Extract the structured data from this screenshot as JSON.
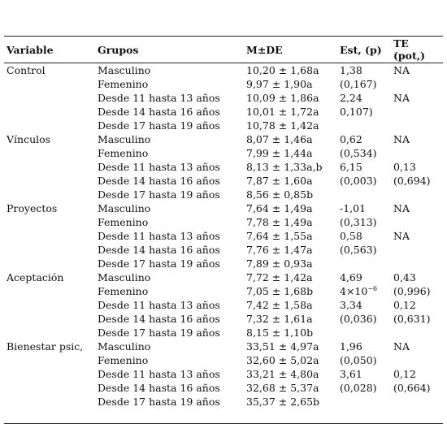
{
  "table": {
    "headers": [
      "Variable",
      "Grupos",
      "M±DE",
      "Est, (p)",
      "TE (pot,)"
    ],
    "groups": [
      {
        "variable": "Control",
        "rows": [
          {
            "group": "Masculino",
            "mean": "10,20 ± 1,68a",
            "est": "1,38",
            "te": "NA"
          },
          {
            "group": "Femenino",
            "mean": "9,97 ± 1,90a",
            "est": "(0,167)"
          },
          {
            "group": "Desde 11 hasta 13 años",
            "mean": "10,09 ± 1,86a",
            "est": "2,24",
            "te": "NA"
          },
          {
            "group": "Desde 14 hasta 16 años",
            "mean": "10,01 ± 1,72a",
            "est": "0,107)"
          },
          {
            "group": "Desde 17 hasta 19 años",
            "mean": "10,78 ± 1,42a"
          }
        ]
      },
      {
        "variable": "Vínculos",
        "rows": [
          {
            "group": "Masculino",
            "mean": "8,07 ± 1,46a",
            "est": "0,62",
            "te": "NA"
          },
          {
            "group": "Femenino",
            "mean": "7,99 ± 1,44a",
            "est": "(0,534)"
          },
          {
            "group": "Desde 11 hasta 13 años",
            "mean": "8,13 ± 1,33a,b",
            "est": "6,15",
            "te": "0,13"
          },
          {
            "group": "Desde 14 hasta 16 años",
            "mean": "7,87 ± 1,60a",
            "est": "(0,003)",
            "te": "(0,694)"
          },
          {
            "group": "Desde 17 hasta 19 años",
            "mean": "8,56 ± 0,85b"
          }
        ]
      },
      {
        "variable": "Proyectos",
        "rows": [
          {
            "group": "Masculino",
            "mean": "7,64 ± 1,49a",
            "est": "-1,01",
            "te": "NA"
          },
          {
            "group": "Femenino",
            "mean": "7,78 ± 1,49a",
            "est": "(0,313)"
          },
          {
            "group": "Desde 11 hasta 13 años",
            "mean": "7,64 ± 1,55a",
            "est": "0,58",
            "te": "NA"
          },
          {
            "group": "Desde 14 hasta 16 años",
            "mean": "7,76 ± 1,47a",
            "est": "(0,563)"
          },
          {
            "group": "Desde 17 hasta 19 años",
            "mean": "7,89 ± 0,93a"
          }
        ]
      },
      {
        "variable": "Aceptación",
        "rows": [
          {
            "group": "Masculino",
            "mean": "7,72 ± 1,42a",
            "est": "4,69",
            "te": "0,43"
          },
          {
            "group": "Femenino",
            "mean": "7,05 ± 1,68b",
            "est": {
              "base": "4×10",
              "exp": "−6"
            },
            "te": "(0,996)"
          },
          {
            "group": "Desde 11 hasta 13 años",
            "mean": "7,42 ± 1,58a",
            "est": "3,34",
            "te": "0,12"
          },
          {
            "group": "Desde 14 hasta 16 años",
            "mean": "7,32 ± 1,61a",
            "est": "(0,036)",
            "te": "(0,631)"
          },
          {
            "group": "Desde 17 hasta 19 años",
            "mean": "8,15 ± 1,10b"
          }
        ]
      },
      {
        "variable": "Bienestar psic,",
        "rows": [
          {
            "group": "Masculino",
            "mean": "33,51 ± 4,97a",
            "est": "1,96",
            "te": "NA"
          },
          {
            "group": "Femenino",
            "mean": "32,60 ± 5,02a",
            "est": "(0,050)"
          },
          {
            "group": "Desde 11 hasta 13 años",
            "mean": "33,21 ± 4,80a",
            "est": "3,61",
            "te": "0,12"
          },
          {
            "group": "Desde 14 hasta 16 años",
            "mean": "32,68 ± 5,37a",
            "est": "(0,028)",
            "te": "(0,664)"
          },
          {
            "group": "Desde 17 hasta 19 años",
            "mean": "35,37 ± 2,65b"
          }
        ]
      }
    ]
  }
}
